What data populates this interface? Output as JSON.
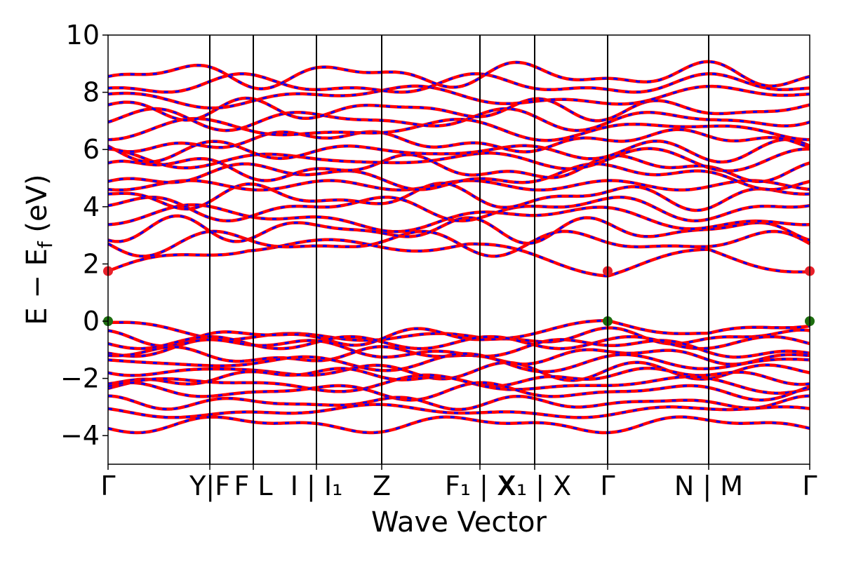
{
  "chart_data": {
    "type": "line",
    "title": "",
    "xlabel": "Wave Vector",
    "ylabel_parts": {
      "main": "E − E",
      "sub": "f",
      "unit": " (eV)"
    },
    "ylim": [
      -5,
      10
    ],
    "y_ticks": [
      -4,
      -2,
      0,
      2,
      4,
      6,
      8,
      10
    ],
    "y_tick_labels": [
      "−4",
      "−2",
      "0",
      "2",
      "4",
      "6",
      "8",
      "10"
    ],
    "x_range": [
      0,
      1
    ],
    "x_ticks": [
      {
        "x": 0.0,
        "label": "Γ"
      },
      {
        "x": 0.145,
        "label": "Y|F"
      },
      {
        "x": 0.207,
        "label": "F L"
      },
      {
        "x": 0.297,
        "label": "I | I₁"
      },
      {
        "x": 0.39,
        "label": "Z"
      },
      {
        "x": 0.53,
        "label": "F₁ | X"
      },
      {
        "x": 0.608,
        "label": "X₁ | X"
      },
      {
        "x": 0.712,
        "label": "Γ"
      },
      {
        "x": 0.856,
        "label": "N | M"
      },
      {
        "x": 1.0,
        "label": "Γ"
      }
    ],
    "vlines": [
      0.145,
      0.207,
      0.297,
      0.39,
      0.53,
      0.608,
      0.712,
      0.856
    ],
    "series": [
      {
        "color": "#ff0000",
        "style": "solid",
        "width": 4.5
      },
      {
        "color": "#0000ff",
        "style": "dashed",
        "width": 3
      }
    ],
    "conduction_band_minimum": {
      "energy": 1.75,
      "x": [
        0.0,
        0.712,
        1.0
      ],
      "color": "#e8202a"
    },
    "valence_band_maximum": {
      "energy": 0.0,
      "x": [
        0.0,
        0.712,
        1.0
      ],
      "color": "#1e6e10"
    },
    "valence_bands": [
      {
        "base": -0.3,
        "amp": 0.25,
        "seed": 1
      },
      {
        "base": -0.55,
        "amp": 0.2,
        "seed": 2
      },
      {
        "base": -0.75,
        "amp": 0.2,
        "seed": 3
      },
      {
        "base": -0.95,
        "amp": 0.25,
        "seed": 4
      },
      {
        "base": -1.2,
        "amp": 0.2,
        "seed": 5
      },
      {
        "base": -1.45,
        "amp": 0.2,
        "seed": 6
      },
      {
        "base": -1.75,
        "amp": 0.2,
        "seed": 7
      },
      {
        "base": -1.95,
        "amp": 0.2,
        "seed": 8
      },
      {
        "base": -2.2,
        "amp": 0.2,
        "seed": 9
      },
      {
        "base": -2.45,
        "amp": 0.2,
        "seed": 10
      },
      {
        "base": -2.85,
        "amp": 0.15,
        "seed": 11
      },
      {
        "base": -3.15,
        "amp": 0.15,
        "seed": 12
      },
      {
        "base": -3.6,
        "amp": 0.2,
        "seed": 13
      }
    ],
    "conduction_bands": [
      {
        "base": 2.2,
        "amp": 0.35,
        "seed": 21
      },
      {
        "base": 2.75,
        "amp": 0.3,
        "seed": 22
      },
      {
        "base": 3.2,
        "amp": 0.3,
        "seed": 23
      },
      {
        "base": 3.6,
        "amp": 0.3,
        "seed": 24
      },
      {
        "base": 3.95,
        "amp": 0.3,
        "seed": 25
      },
      {
        "base": 4.35,
        "amp": 0.3,
        "seed": 26
      },
      {
        "base": 4.75,
        "amp": 0.3,
        "seed": 27
      },
      {
        "base": 5.05,
        "amp": 0.3,
        "seed": 28
      },
      {
        "base": 5.35,
        "amp": 0.3,
        "seed": 29
      },
      {
        "base": 5.65,
        "amp": 0.25,
        "seed": 30
      },
      {
        "base": 5.95,
        "amp": 0.25,
        "seed": 31
      },
      {
        "base": 6.3,
        "amp": 0.25,
        "seed": 32
      },
      {
        "base": 6.7,
        "amp": 0.25,
        "seed": 33
      },
      {
        "base": 7.05,
        "amp": 0.25,
        "seed": 34
      },
      {
        "base": 7.4,
        "amp": 0.25,
        "seed": 35
      },
      {
        "base": 7.85,
        "amp": 0.25,
        "seed": 36
      },
      {
        "base": 8.25,
        "amp": 0.25,
        "seed": 37
      },
      {
        "base": 8.6,
        "amp": 0.3,
        "seed": 38
      }
    ]
  }
}
